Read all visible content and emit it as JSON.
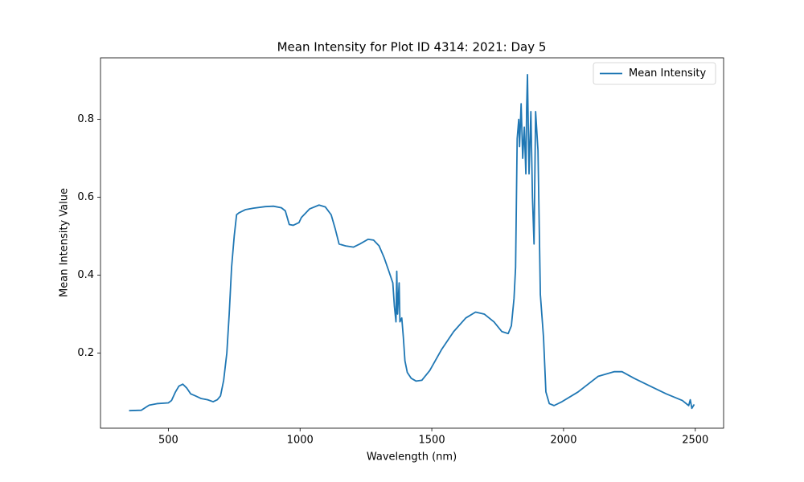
{
  "chart_data": {
    "type": "line",
    "title": "Mean Intensity for Plot ID 4314: 2021: Day 5",
    "x_label": "Wavelength (nm)",
    "y_label": "Mean Intensity Value",
    "x": [
      351,
      397,
      427,
      457,
      500,
      512,
      527,
      540,
      555,
      570,
      585,
      603,
      625,
      649,
      670,
      686,
      698,
      710,
      722,
      731,
      740,
      750,
      759,
      768,
      792,
      823,
      868,
      899,
      929,
      944,
      959,
      974,
      996,
      1005,
      1036,
      1072,
      1096,
      1118,
      1133,
      1148,
      1173,
      1203,
      1227,
      1258,
      1279,
      1300,
      1319,
      1337,
      1352,
      1358,
      1364,
      1367,
      1370,
      1376,
      1379,
      1386,
      1392,
      1398,
      1407,
      1422,
      1440,
      1462,
      1492,
      1538,
      1583,
      1629,
      1666,
      1699,
      1736,
      1766,
      1790,
      1802,
      1812,
      1818,
      1824,
      1830,
      1833,
      1839,
      1845,
      1851,
      1857,
      1860,
      1863,
      1869,
      1876,
      1882,
      1888,
      1894,
      1903,
      1912,
      1924,
      1933,
      1946,
      1964,
      1994,
      2055,
      2131,
      2192,
      2222,
      2268,
      2329,
      2390,
      2451,
      2475,
      2481,
      2487,
      2496
    ],
    "series": [
      {
        "name": "Mean Intensity",
        "color": "#1f77b4",
        "values": [
          0.052,
          0.053,
          0.066,
          0.07,
          0.072,
          0.078,
          0.1,
          0.115,
          0.12,
          0.11,
          0.095,
          0.09,
          0.083,
          0.08,
          0.075,
          0.08,
          0.09,
          0.13,
          0.2,
          0.3,
          0.42,
          0.5,
          0.555,
          0.56,
          0.568,
          0.572,
          0.576,
          0.577,
          0.573,
          0.565,
          0.53,
          0.528,
          0.535,
          0.548,
          0.57,
          0.58,
          0.575,
          0.555,
          0.52,
          0.48,
          0.475,
          0.472,
          0.48,
          0.492,
          0.49,
          0.475,
          0.445,
          0.41,
          0.38,
          0.32,
          0.28,
          0.41,
          0.3,
          0.38,
          0.28,
          0.29,
          0.24,
          0.18,
          0.15,
          0.135,
          0.128,
          0.13,
          0.155,
          0.21,
          0.255,
          0.29,
          0.305,
          0.3,
          0.28,
          0.255,
          0.25,
          0.27,
          0.34,
          0.42,
          0.75,
          0.8,
          0.73,
          0.84,
          0.7,
          0.78,
          0.66,
          0.83,
          0.915,
          0.66,
          0.82,
          0.6,
          0.48,
          0.82,
          0.72,
          0.35,
          0.24,
          0.1,
          0.07,
          0.065,
          0.075,
          0.1,
          0.14,
          0.152,
          0.152,
          0.135,
          0.115,
          0.095,
          0.078,
          0.065,
          0.08,
          0.058,
          0.068
        ]
      }
    ],
    "xlim": [
      242.5,
      2607.5
    ],
    "ylim": [
      0.007,
      0.958
    ],
    "xticks": [
      500,
      1000,
      1500,
      2000,
      2500
    ],
    "yticks": [
      0.2,
      0.4,
      0.6,
      0.8
    ],
    "legend": "upper right",
    "grid": false
  }
}
